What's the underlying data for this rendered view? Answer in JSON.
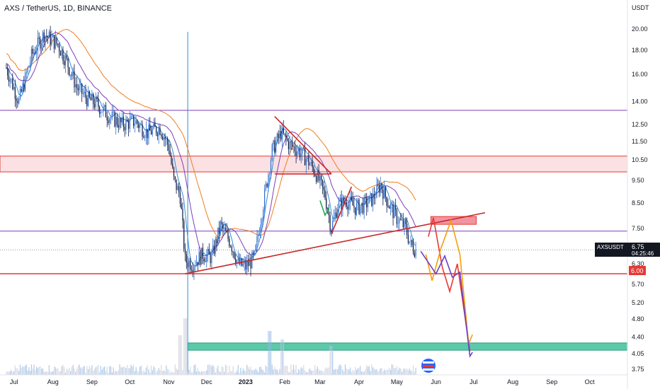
{
  "title": "AXS / TetherUS, 1D, BINANCE",
  "currency": "USDT",
  "price_label": {
    "symbol": "AXSUSDT",
    "price": "6.75",
    "countdown": "04:25:46"
  },
  "level_label": "6.00",
  "colors": {
    "up": "#1e3a8a",
    "blue_line": "#2f8cd6",
    "orange": "#f07d21",
    "purple": "#7b3fb5",
    "red": "#e53935",
    "dark_red": "#c62828",
    "zone_pink": "#f7c8cc",
    "zone_green": "#3fbf9a",
    "zone_red": "#f08090",
    "path_orange": "#f59e0b",
    "path_purple": "#6a40c8",
    "green_arrow": "#20a050"
  },
  "chart_data": {
    "type": "candlestick",
    "title": "AXS / TetherUS, 1D, BINANCE",
    "y_scale": "log",
    "ylim": [
      3.65,
      21.5
    ],
    "y_ticks": [
      "20.00",
      "18.00",
      "16.00",
      "14.00",
      "12.50",
      "11.50",
      "10.50",
      "9.50",
      "8.50",
      "7.50",
      "6.30",
      "5.70",
      "5.20",
      "4.80",
      "4.40",
      "4.05",
      "3.75"
    ],
    "x_ticks": [
      "Jul",
      "Aug",
      "Sep",
      "Oct",
      "Nov",
      "Dec",
      "2023",
      "Feb",
      "Mar",
      "Apr",
      "May",
      "Jun",
      "Jul",
      "Aug",
      "Sep",
      "Oct"
    ],
    "x_ticks_bold": [
      "2023"
    ],
    "price_path": [
      [
        "2022-06-25",
        16.5
      ],
      [
        "2022-07-05",
        14.0
      ],
      [
        "2022-07-15",
        17.5
      ],
      [
        "2022-07-25",
        19.5
      ],
      [
        "2022-08-05",
        18.5
      ],
      [
        "2022-08-12",
        17.0
      ],
      [
        "2022-08-20",
        15.0
      ],
      [
        "2022-08-28",
        14.2
      ],
      [
        "2022-09-05",
        13.8
      ],
      [
        "2022-09-15",
        13.0
      ],
      [
        "2022-09-25",
        12.5
      ],
      [
        "2022-10-05",
        12.7
      ],
      [
        "2022-10-15",
        12.0
      ],
      [
        "2022-10-25",
        12.3
      ],
      [
        "2022-11-01",
        11.2
      ],
      [
        "2022-11-05",
        9.5
      ],
      [
        "2022-11-10",
        8.8
      ],
      [
        "2022-11-14",
        6.4
      ],
      [
        "2022-11-20",
        6.3
      ],
      [
        "2022-11-28",
        6.6
      ],
      [
        "2022-12-05",
        6.5
      ],
      [
        "2022-12-12",
        7.6
      ],
      [
        "2022-12-20",
        7.0
      ],
      [
        "2022-12-26",
        6.3
      ],
      [
        "2023-01-01",
        6.2
      ],
      [
        "2023-01-08",
        6.5
      ],
      [
        "2023-01-15",
        8.5
      ],
      [
        "2023-01-22",
        11.0
      ],
      [
        "2023-01-29",
        12.0
      ],
      [
        "2023-02-05",
        11.3
      ],
      [
        "2023-02-12",
        11.0
      ],
      [
        "2023-02-19",
        10.5
      ],
      [
        "2023-02-26",
        9.8
      ],
      [
        "2023-03-05",
        8.8
      ],
      [
        "2023-03-10",
        7.5
      ],
      [
        "2023-03-15",
        8.4
      ],
      [
        "2023-03-22",
        8.6
      ],
      [
        "2023-03-29",
        8.3
      ],
      [
        "2023-04-05",
        8.4
      ],
      [
        "2023-04-12",
        8.7
      ],
      [
        "2023-04-18",
        9.3
      ],
      [
        "2023-04-25",
        8.4
      ],
      [
        "2023-05-01",
        7.9
      ],
      [
        "2023-05-08",
        7.5
      ],
      [
        "2023-05-12",
        6.9
      ],
      [
        "2023-05-16",
        6.75
      ]
    ],
    "volume_spikes": [
      [
        "2022-11-14",
        1.0
      ],
      [
        "2022-11-10",
        0.6
      ],
      [
        "2023-01-20",
        0.7
      ],
      [
        "2023-01-30",
        0.5
      ],
      [
        "2023-03-10",
        0.35
      ]
    ],
    "horizontal_levels": [
      {
        "y": 13.4,
        "color": "purple"
      },
      {
        "y": 7.4,
        "color": "purple"
      },
      {
        "y": 6.0,
        "color": "red",
        "label": true
      }
    ],
    "zones": [
      {
        "y1": 9.9,
        "y2": 10.7,
        "color": "zone_pink",
        "x1": "2022-06-20",
        "x2": "2023-10-31"
      },
      {
        "y1": 4.12,
        "y2": 4.27,
        "color": "zone_green",
        "x1": "2022-11-16",
        "x2": "2023-10-31"
      },
      {
        "y1": 7.65,
        "y2": 7.95,
        "color": "zone_red",
        "x1": "2023-05-28",
        "x2": "2023-07-03"
      }
    ],
    "trendlines": [
      {
        "from": [
          "2022-11-14",
          6.0
        ],
        "to": [
          "2023-07-10",
          8.1
        ],
        "color": "dark_red"
      },
      {
        "from": [
          "2023-01-24",
          13.0
        ],
        "to": [
          "2023-03-10",
          9.8
        ],
        "color": "dark_red"
      },
      {
        "from": [
          "2023-01-24",
          9.8
        ],
        "to": [
          "2023-03-10",
          9.8
        ],
        "color": "dark_red"
      },
      {
        "from": [
          "2023-03-10",
          7.3
        ],
        "to": [
          "2023-03-26",
          9.2
        ],
        "color": "dark_red"
      }
    ],
    "projections": [
      {
        "color": "red",
        "points": [
          [
            "2023-05-26",
            7.2
          ],
          [
            "2023-05-30",
            7.9
          ],
          [
            "2023-06-06",
            6.2
          ],
          [
            "2023-06-12",
            5.5
          ],
          [
            "2023-06-18",
            6.3
          ],
          [
            "2023-06-28",
            4.1
          ]
        ]
      },
      {
        "color": "path_orange",
        "points": [
          [
            "2023-05-24",
            6.6
          ],
          [
            "2023-05-29",
            5.8
          ],
          [
            "2023-06-05",
            6.8
          ],
          [
            "2023-06-13",
            7.8
          ],
          [
            "2023-06-20",
            6.6
          ],
          [
            "2023-06-27",
            4.25
          ],
          [
            "2023-06-30",
            4.45
          ]
        ]
      },
      {
        "color": "path_purple",
        "points": [
          [
            "2023-05-20",
            6.7
          ],
          [
            "2023-06-01",
            6.0
          ],
          [
            "2023-06-08",
            6.55
          ],
          [
            "2023-06-14",
            5.9
          ],
          [
            "2023-06-20",
            6.05
          ],
          [
            "2023-06-28",
            4.0
          ],
          [
            "2023-06-30",
            4.08
          ]
        ]
      }
    ]
  }
}
